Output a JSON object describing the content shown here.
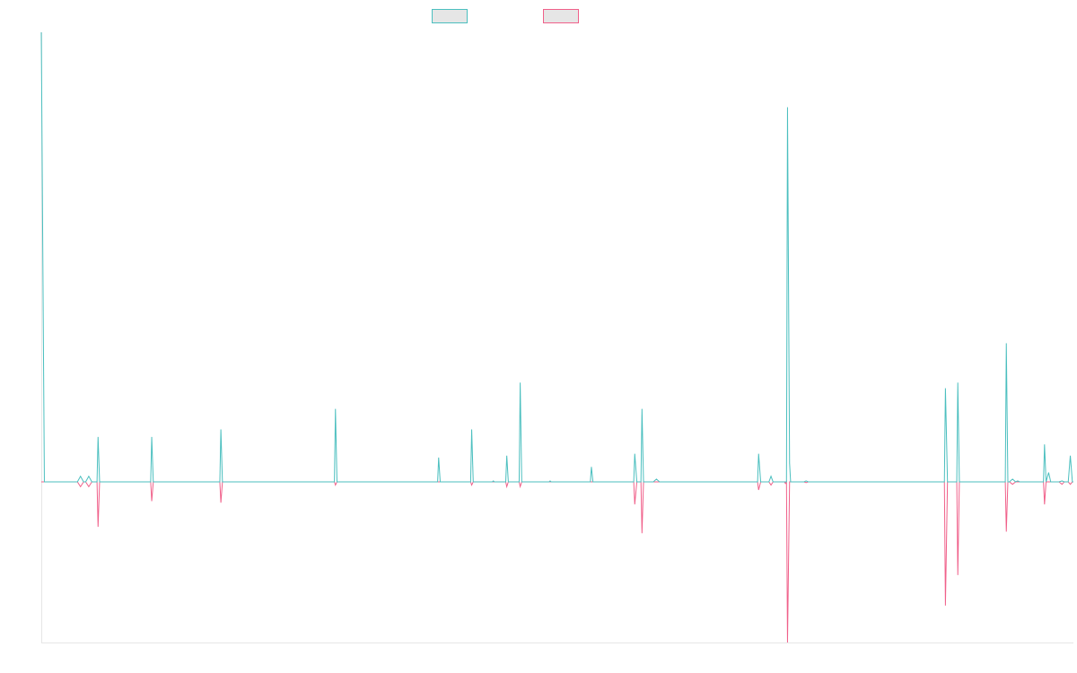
{
  "chart_data": {
    "type": "line",
    "title": "",
    "xlabel": "",
    "ylabel": "",
    "grid": false,
    "legend": {
      "placement": "top-center",
      "entries": [
        "",
        ""
      ]
    },
    "x_range": [
      0,
      100
    ],
    "ylim": [
      -100,
      240
    ],
    "series": [
      {
        "color": "#4bbfbf",
        "fill": "#e6e6e6",
        "values": [
          [
            0,
            240
          ],
          [
            0.3,
            0
          ],
          [
            3.5,
            0
          ],
          [
            3.8,
            3
          ],
          [
            4.1,
            0
          ],
          [
            4.3,
            0
          ],
          [
            4.6,
            3
          ],
          [
            4.9,
            0
          ],
          [
            5.3,
            0
          ],
          [
            5.4,
            0
          ],
          [
            5.5,
            24
          ],
          [
            5.65,
            0
          ],
          [
            10.5,
            0
          ],
          [
            10.6,
            0
          ],
          [
            10.7,
            24
          ],
          [
            10.85,
            0
          ],
          [
            17.2,
            0
          ],
          [
            17.3,
            0
          ],
          [
            17.4,
            28
          ],
          [
            17.55,
            0
          ],
          [
            28.3,
            0
          ],
          [
            28.4,
            0
          ],
          [
            28.5,
            39
          ],
          [
            28.65,
            0
          ],
          [
            38.3,
            0
          ],
          [
            38.4,
            0
          ],
          [
            38.5,
            13
          ],
          [
            38.65,
            0
          ],
          [
            41.5,
            0
          ],
          [
            41.6,
            0
          ],
          [
            41.7,
            28
          ],
          [
            41.85,
            0
          ],
          [
            43.7,
            0
          ],
          [
            43.8,
            0.5
          ],
          [
            43.9,
            0
          ],
          [
            44.9,
            0
          ],
          [
            45.0,
            0
          ],
          [
            45.1,
            14
          ],
          [
            45.25,
            0
          ],
          [
            46.2,
            0
          ],
          [
            46.3,
            0
          ],
          [
            46.4,
            53
          ],
          [
            46.55,
            0
          ],
          [
            49.2,
            0
          ],
          [
            49.3,
            0.5
          ],
          [
            49.4,
            0
          ],
          [
            53.2,
            0
          ],
          [
            53.3,
            8
          ],
          [
            53.45,
            0
          ],
          [
            57.4,
            0
          ],
          [
            57.5,
            15
          ],
          [
            57.7,
            0
          ],
          [
            58.0,
            0
          ],
          [
            58.1,
            0
          ],
          [
            58.2,
            39
          ],
          [
            58.35,
            0
          ],
          [
            59.3,
            0
          ],
          [
            59.6,
            1.5
          ],
          [
            59.9,
            0
          ],
          [
            69.3,
            0
          ],
          [
            69.4,
            0
          ],
          [
            69.5,
            15
          ],
          [
            69.7,
            0
          ],
          [
            70.5,
            0
          ],
          [
            70.7,
            3
          ],
          [
            70.9,
            0
          ],
          [
            72.1,
            0
          ],
          [
            72.2,
            0
          ],
          [
            72.3,
            200
          ],
          [
            72.5,
            10
          ],
          [
            72.6,
            0
          ],
          [
            73.9,
            0
          ],
          [
            74.1,
            0.5
          ],
          [
            74.3,
            0
          ],
          [
            87.4,
            0
          ],
          [
            87.5,
            0
          ],
          [
            87.6,
            50
          ],
          [
            87.8,
            0
          ],
          [
            88.6,
            0
          ],
          [
            88.7,
            0
          ],
          [
            88.8,
            53
          ],
          [
            88.95,
            0
          ],
          [
            93.3,
            0
          ],
          [
            93.4,
            0
          ],
          [
            93.5,
            74
          ],
          [
            93.65,
            0
          ],
          [
            93.8,
            0
          ],
          [
            94.1,
            1.5
          ],
          [
            94.4,
            0
          ],
          [
            94.6,
            0.5
          ],
          [
            94.8,
            0
          ],
          [
            97.0,
            0
          ],
          [
            97.1,
            0
          ],
          [
            97.2,
            20
          ],
          [
            97.35,
            0
          ],
          [
            97.6,
            5
          ],
          [
            97.8,
            0
          ],
          [
            98.6,
            0
          ],
          [
            98.9,
            0.5
          ],
          [
            99.1,
            0
          ],
          [
            99.5,
            0
          ],
          [
            99.7,
            14
          ],
          [
            99.9,
            0
          ],
          [
            100,
            0
          ]
        ]
      },
      {
        "color": "#f0608a",
        "fill": "#e6e6e6",
        "values": [
          [
            0,
            0
          ],
          [
            3.5,
            0
          ],
          [
            3.8,
            -3
          ],
          [
            4.1,
            0
          ],
          [
            4.3,
            0
          ],
          [
            4.6,
            -3
          ],
          [
            4.9,
            0
          ],
          [
            5.3,
            0
          ],
          [
            5.4,
            0
          ],
          [
            5.5,
            -28
          ],
          [
            5.65,
            0
          ],
          [
            10.5,
            0
          ],
          [
            10.6,
            0
          ],
          [
            10.7,
            -12
          ],
          [
            10.85,
            0
          ],
          [
            17.2,
            0
          ],
          [
            17.3,
            0
          ],
          [
            17.4,
            -13
          ],
          [
            17.55,
            0
          ],
          [
            28.3,
            0
          ],
          [
            28.4,
            0
          ],
          [
            28.5,
            -2
          ],
          [
            28.65,
            0
          ],
          [
            41.5,
            0
          ],
          [
            41.6,
            0
          ],
          [
            41.7,
            -2
          ],
          [
            41.85,
            0
          ],
          [
            44.9,
            0
          ],
          [
            45.0,
            0
          ],
          [
            45.1,
            -3
          ],
          [
            45.25,
            0
          ],
          [
            46.2,
            0
          ],
          [
            46.3,
            0
          ],
          [
            46.4,
            -3
          ],
          [
            46.55,
            0
          ],
          [
            57.4,
            0
          ],
          [
            57.5,
            -14
          ],
          [
            57.7,
            0
          ],
          [
            58.0,
            0
          ],
          [
            58.1,
            0
          ],
          [
            58.2,
            -32
          ],
          [
            58.35,
            0
          ],
          [
            69.3,
            0
          ],
          [
            69.4,
            0
          ],
          [
            69.5,
            -5
          ],
          [
            69.7,
            0
          ],
          [
            70.5,
            0
          ],
          [
            70.7,
            -2
          ],
          [
            70.9,
            0
          ],
          [
            72.0,
            0
          ],
          [
            72.1,
            -1
          ],
          [
            72.2,
            0
          ],
          [
            72.3,
            -100
          ],
          [
            72.5,
            0
          ],
          [
            73.9,
            0
          ],
          [
            74.1,
            -0.5
          ],
          [
            74.3,
            0
          ],
          [
            87.4,
            0
          ],
          [
            87.5,
            0
          ],
          [
            87.6,
            -77
          ],
          [
            87.8,
            0
          ],
          [
            88.6,
            0
          ],
          [
            88.7,
            0
          ],
          [
            88.8,
            -58
          ],
          [
            88.95,
            0
          ],
          [
            93.3,
            0
          ],
          [
            93.4,
            0
          ],
          [
            93.5,
            -31
          ],
          [
            93.65,
            0
          ],
          [
            93.8,
            0
          ],
          [
            94.1,
            -1.5
          ],
          [
            94.4,
            0
          ],
          [
            97.0,
            0
          ],
          [
            97.1,
            0
          ],
          [
            97.2,
            -14
          ],
          [
            97.35,
            0
          ],
          [
            98.6,
            0
          ],
          [
            98.9,
            -1.5
          ],
          [
            99.1,
            0
          ],
          [
            99.5,
            0
          ],
          [
            99.7,
            -1.5
          ],
          [
            99.9,
            0
          ],
          [
            100,
            0
          ]
        ]
      }
    ]
  }
}
